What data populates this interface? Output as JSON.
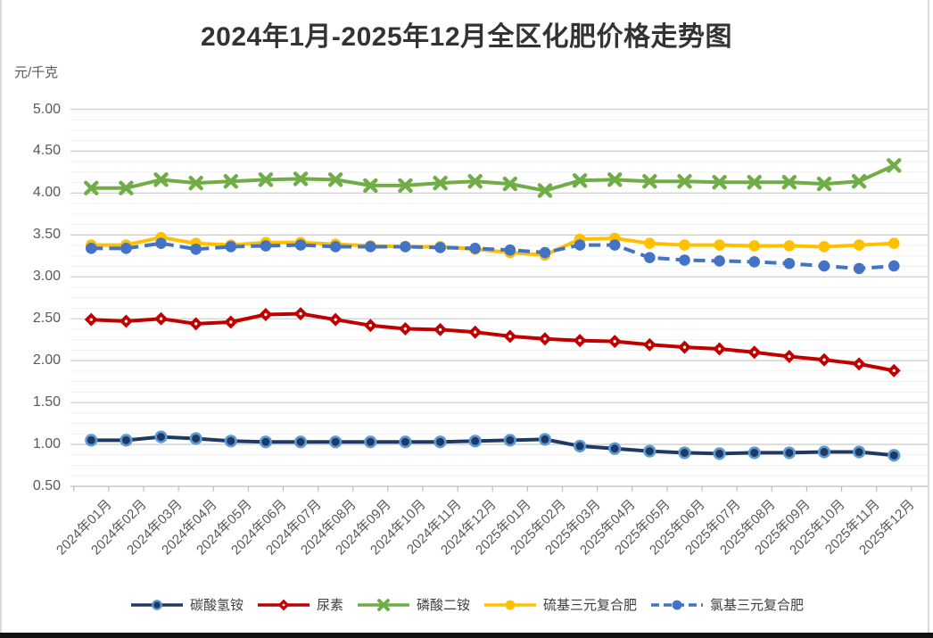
{
  "header": {
    "title": "2024年1月-2025年12月全区化肥价格走势图"
  },
  "chart_data": {
    "type": "line",
    "title": "2024年1月-2025年12月全区化肥价格走势图",
    "ylabel": "元/千克",
    "xlabel": "",
    "ylim": [
      0.5,
      5.0
    ],
    "ytick_step": 0.5,
    "ytick_labels": [
      "5.00",
      "4.50",
      "4.00",
      "3.50",
      "3.00",
      "2.50",
      "2.00",
      "1.50",
      "1.00",
      "0.50"
    ],
    "grid": {
      "major": true,
      "minor": true,
      "minor_step": 0.125
    },
    "legend_position": "bottom",
    "categories": [
      "2024年01月",
      "2024年02月",
      "2024年03月",
      "2024年04月",
      "2024年05月",
      "2024年06月",
      "2024年07月",
      "2024年08月",
      "2024年09月",
      "2024年10月",
      "2024年11月",
      "2024年12月",
      "2025年01月",
      "2025年02月",
      "2025年03月",
      "2025年04月",
      "2025年05月",
      "2025年06月",
      "2025年07月",
      "2025年08月",
      "2025年09月",
      "2025年10月",
      "2025年11月",
      "2025年12月"
    ],
    "series": [
      {
        "name": "碳酸氢铵",
        "color": "#1F3864",
        "marker": "circle-outlined",
        "marker_outline": "#5B9BD5",
        "dash": "solid",
        "values": [
          1.05,
          1.05,
          1.09,
          1.07,
          1.04,
          1.03,
          1.03,
          1.03,
          1.03,
          1.03,
          1.03,
          1.04,
          1.05,
          1.06,
          0.98,
          0.95,
          0.92,
          0.9,
          0.89,
          0.9,
          0.9,
          0.91,
          0.91,
          0.87
        ]
      },
      {
        "name": "尿素",
        "color": "#C00000",
        "marker": "diamond",
        "dash": "solid",
        "values": [
          2.49,
          2.47,
          2.5,
          2.44,
          2.46,
          2.55,
          2.56,
          2.49,
          2.42,
          2.38,
          2.37,
          2.34,
          2.29,
          2.26,
          2.24,
          2.23,
          2.19,
          2.16,
          2.14,
          2.1,
          2.05,
          2.01,
          1.96,
          1.88
        ]
      },
      {
        "name": "磷酸二铵",
        "color": "#70AD47",
        "marker": "x",
        "dash": "solid",
        "values": [
          4.06,
          4.06,
          4.16,
          4.12,
          4.14,
          4.16,
          4.17,
          4.16,
          4.09,
          4.09,
          4.12,
          4.14,
          4.11,
          4.03,
          4.15,
          4.16,
          4.14,
          4.14,
          4.13,
          4.13,
          4.13,
          4.11,
          4.14,
          4.33
        ]
      },
      {
        "name": "硫基三元复合肥",
        "color": "#FFC000",
        "marker": "circle",
        "dash": "solid",
        "values": [
          3.38,
          3.38,
          3.47,
          3.4,
          3.38,
          3.41,
          3.41,
          3.39,
          3.37,
          3.36,
          3.36,
          3.33,
          3.29,
          3.26,
          3.45,
          3.46,
          3.4,
          3.38,
          3.38,
          3.37,
          3.37,
          3.36,
          3.38,
          3.4
        ]
      },
      {
        "name": "氯基三元复合肥",
        "color": "#4472C4",
        "marker": "circle",
        "dash": "dashed",
        "values": [
          3.34,
          3.34,
          3.4,
          3.33,
          3.36,
          3.37,
          3.38,
          3.36,
          3.36,
          3.36,
          3.35,
          3.34,
          3.32,
          3.29,
          3.38,
          3.38,
          3.23,
          3.2,
          3.19,
          3.18,
          3.16,
          3.13,
          3.1,
          3.13
        ]
      }
    ],
    "style": {
      "axis_color": "#BFBFBF",
      "major_grid_color": "#CFCFCF",
      "minor_grid_color": "#EFEFEF",
      "edge_border_color": "#D9D9D9",
      "label_color": "#595959"
    }
  }
}
